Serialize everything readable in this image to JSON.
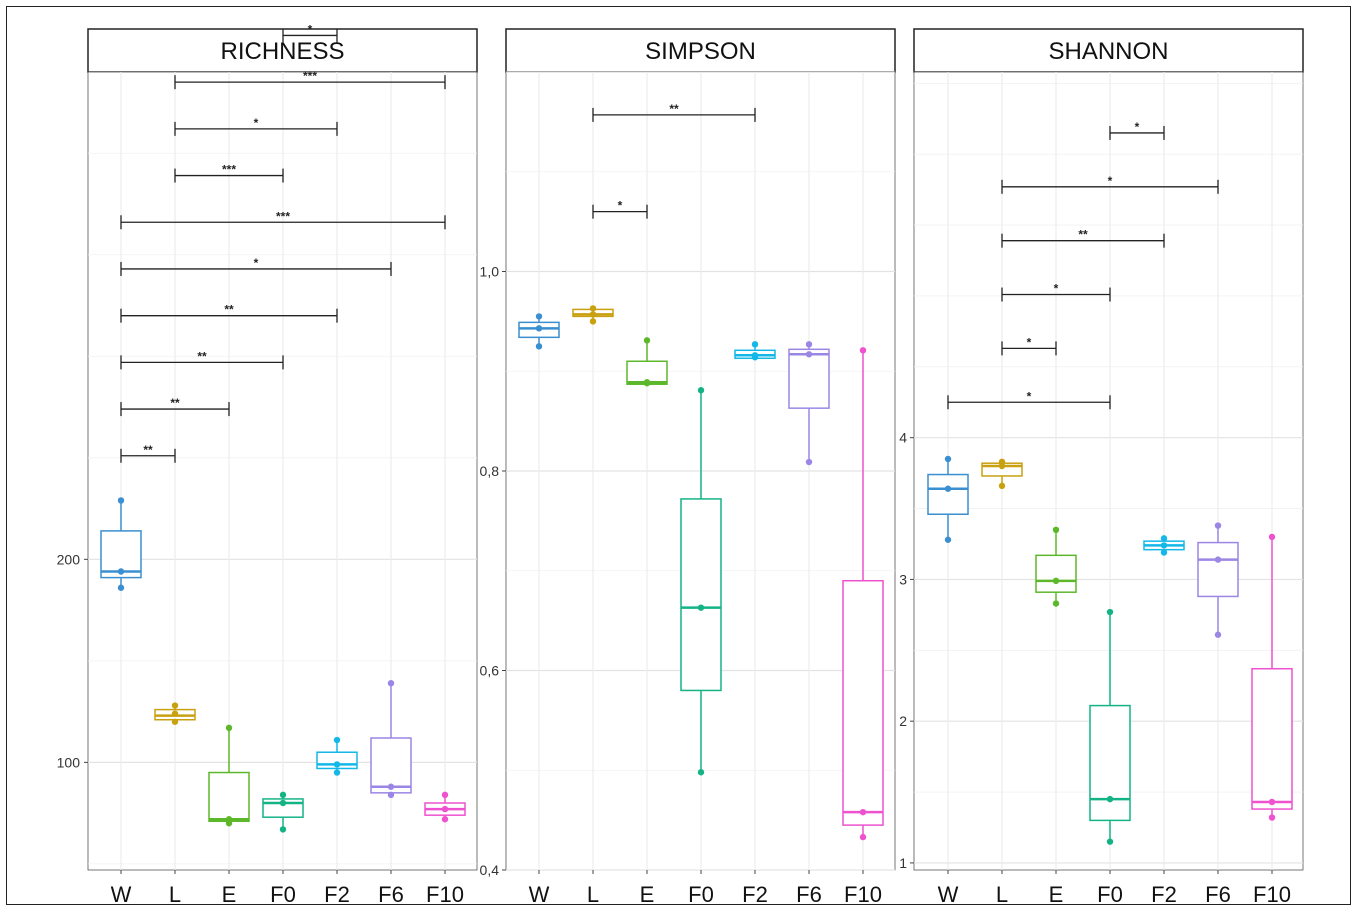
{
  "chart_data": [
    {
      "type": "box",
      "title": "RICHNESS",
      "categories": [
        "W",
        "L",
        "E",
        "F0",
        "F2",
        "F6",
        "F10"
      ],
      "colors": [
        "#3a8fd0",
        "#c9a010",
        "#5cb82a",
        "#14b386",
        "#14b8e8",
        "#9b86e6",
        "#ee52cf"
      ],
      "ylim": [
        47,
        440
      ],
      "yticks": [
        100,
        200
      ],
      "ytick_labels": [
        "100",
        "200"
      ],
      "boxes": [
        {
          "q1": 191,
          "median": 194,
          "q3": 214,
          "whisker_low": 186,
          "whisker_high": 229,
          "points": [
            186,
            194,
            229
          ]
        },
        {
          "q1": 121,
          "median": 123,
          "q3": 126,
          "whisker_low": 120,
          "whisker_high": 128,
          "points": [
            120,
            124,
            128
          ]
        },
        {
          "q1": 71,
          "median": 72,
          "q3": 95,
          "whisker_low": 70,
          "whisker_high": 117,
          "points": [
            70,
            72,
            117
          ]
        },
        {
          "q1": 73,
          "median": 80,
          "q3": 82,
          "whisker_low": 67,
          "whisker_high": 84,
          "points": [
            67,
            80,
            84
          ]
        },
        {
          "q1": 97,
          "median": 99,
          "q3": 105,
          "whisker_low": 95,
          "whisker_high": 111,
          "points": [
            95,
            99,
            111
          ]
        },
        {
          "q1": 85,
          "median": 88,
          "q3": 112,
          "whisker_low": 84,
          "whisker_high": 139,
          "points": [
            84,
            88,
            139
          ]
        },
        {
          "q1": 74,
          "median": 77,
          "q3": 80,
          "whisker_low": 72,
          "whisker_high": 84,
          "points": [
            72,
            77,
            84
          ]
        }
      ],
      "significance": [
        {
          "from": "W",
          "to": "L",
          "y": 251,
          "label": "**"
        },
        {
          "from": "W",
          "to": "E",
          "y": 274,
          "label": "**"
        },
        {
          "from": "W",
          "to": "F0",
          "y": 297,
          "label": "**"
        },
        {
          "from": "W",
          "to": "F2",
          "y": 320,
          "label": "**"
        },
        {
          "from": "W",
          "to": "F6",
          "y": 343,
          "label": "*"
        },
        {
          "from": "W",
          "to": "F10",
          "y": 366,
          "label": "***"
        },
        {
          "from": "L",
          "to": "F0",
          "y": 389,
          "label": "***"
        },
        {
          "from": "L",
          "to": "F2",
          "y": 412,
          "label": "*"
        },
        {
          "from": "L",
          "to": "F10",
          "y": 435,
          "label": "***"
        },
        {
          "from": "F0",
          "to": "F2",
          "y": 458,
          "label": "*"
        },
        {
          "from": "F2",
          "to": "F10",
          "y": 481,
          "label": "*"
        }
      ]
    },
    {
      "type": "box",
      "title": "SIMPSON",
      "categories": [
        "W",
        "L",
        "E",
        "F0",
        "F2",
        "F6",
        "F10"
      ],
      "colors": [
        "#3a8fd0",
        "#c9a010",
        "#5cb82a",
        "#14b386",
        "#14b8e8",
        "#9b86e6",
        "#ee52cf"
      ],
      "ylim": [
        0.4,
        1.2
      ],
      "yticks": [
        0.4,
        0.6,
        0.8,
        1.0
      ],
      "ytick_labels": [
        "0,4",
        "0,6",
        "0,8",
        "1,0"
      ],
      "boxes": [
        {
          "q1": 0.934,
          "median": 0.943,
          "q3": 0.949,
          "whisker_low": 0.925,
          "whisker_high": 0.955,
          "points": [
            0.925,
            0.943,
            0.955
          ]
        },
        {
          "q1": 0.955,
          "median": 0.957,
          "q3": 0.962,
          "whisker_low": 0.95,
          "whisker_high": 0.963,
          "points": [
            0.95,
            0.957,
            0.963
          ]
        },
        {
          "q1": 0.887,
          "median": 0.889,
          "q3": 0.91,
          "whisker_low": 0.887,
          "whisker_high": 0.931,
          "points": [
            0.888,
            0.889,
            0.931
          ]
        },
        {
          "q1": 0.58,
          "median": 0.663,
          "q3": 0.772,
          "whisker_low": 0.498,
          "whisker_high": 0.881,
          "points": [
            0.498,
            0.663,
            0.881
          ]
        },
        {
          "q1": 0.913,
          "median": 0.916,
          "q3": 0.921,
          "whisker_low": 0.913,
          "whisker_high": 0.927,
          "points": [
            0.914,
            0.916,
            0.927
          ]
        },
        {
          "q1": 0.863,
          "median": 0.917,
          "q3": 0.922,
          "whisker_low": 0.809,
          "whisker_high": 0.927,
          "points": [
            0.809,
            0.917,
            0.927
          ]
        },
        {
          "q1": 0.445,
          "median": 0.458,
          "q3": 0.69,
          "whisker_low": 0.433,
          "whisker_high": 0.921,
          "points": [
            0.433,
            0.458,
            0.921
          ]
        }
      ],
      "significance": [
        {
          "from": "L",
          "to": "E",
          "y": 1.06,
          "label": "*"
        },
        {
          "from": "L",
          "to": "F2",
          "y": 1.157,
          "label": "**"
        }
      ]
    },
    {
      "type": "box",
      "title": "SHANNON",
      "categories": [
        "W",
        "L",
        "E",
        "F0",
        "F2",
        "F6",
        "F10"
      ],
      "colors": [
        "#3a8fd0",
        "#c9a010",
        "#5cb82a",
        "#14b386",
        "#14b8e8",
        "#9b86e6",
        "#ee52cf"
      ],
      "ylim": [
        0.95,
        6.58
      ],
      "yticks": [
        1,
        2,
        3,
        4
      ],
      "ytick_labels": [
        "1",
        "2",
        "3",
        "4"
      ],
      "boxes": [
        {
          "q1": 3.46,
          "median": 3.64,
          "q3": 3.74,
          "whisker_low": 3.28,
          "whisker_high": 3.85,
          "points": [
            3.28,
            3.64,
            3.85
          ]
        },
        {
          "q1": 3.73,
          "median": 3.8,
          "q3": 3.82,
          "whisker_low": 3.66,
          "whisker_high": 3.83,
          "points": [
            3.66,
            3.8,
            3.83
          ]
        },
        {
          "q1": 2.91,
          "median": 2.99,
          "q3": 3.17,
          "whisker_low": 2.83,
          "whisker_high": 3.35,
          "points": [
            2.83,
            2.99,
            3.35
          ]
        },
        {
          "q1": 1.3,
          "median": 1.45,
          "q3": 2.11,
          "whisker_low": 1.15,
          "whisker_high": 2.77,
          "points": [
            1.15,
            1.45,
            2.77
          ]
        },
        {
          "q1": 3.21,
          "median": 3.24,
          "q3": 3.27,
          "whisker_low": 3.19,
          "whisker_high": 3.29,
          "points": [
            3.19,
            3.24,
            3.29
          ]
        },
        {
          "q1": 2.88,
          "median": 3.14,
          "q3": 3.26,
          "whisker_low": 2.61,
          "whisker_high": 3.38,
          "points": [
            2.61,
            3.14,
            3.38
          ]
        },
        {
          "q1": 1.38,
          "median": 1.43,
          "q3": 2.37,
          "whisker_low": 1.32,
          "whisker_high": 3.3,
          "points": [
            1.32,
            1.43,
            3.3
          ]
        }
      ],
      "significance": [
        {
          "from": "W",
          "to": "F0",
          "y": 4.25,
          "label": "*"
        },
        {
          "from": "L",
          "to": "E",
          "y": 4.63,
          "label": "*"
        },
        {
          "from": "L",
          "to": "F0",
          "y": 5.01,
          "label": "*"
        },
        {
          "from": "L",
          "to": "F2",
          "y": 5.39,
          "label": "**"
        },
        {
          "from": "L",
          "to": "F6",
          "y": 5.77,
          "label": "*"
        },
        {
          "from": "F0",
          "to": "F2",
          "y": 6.15,
          "label": "*"
        }
      ]
    }
  ]
}
